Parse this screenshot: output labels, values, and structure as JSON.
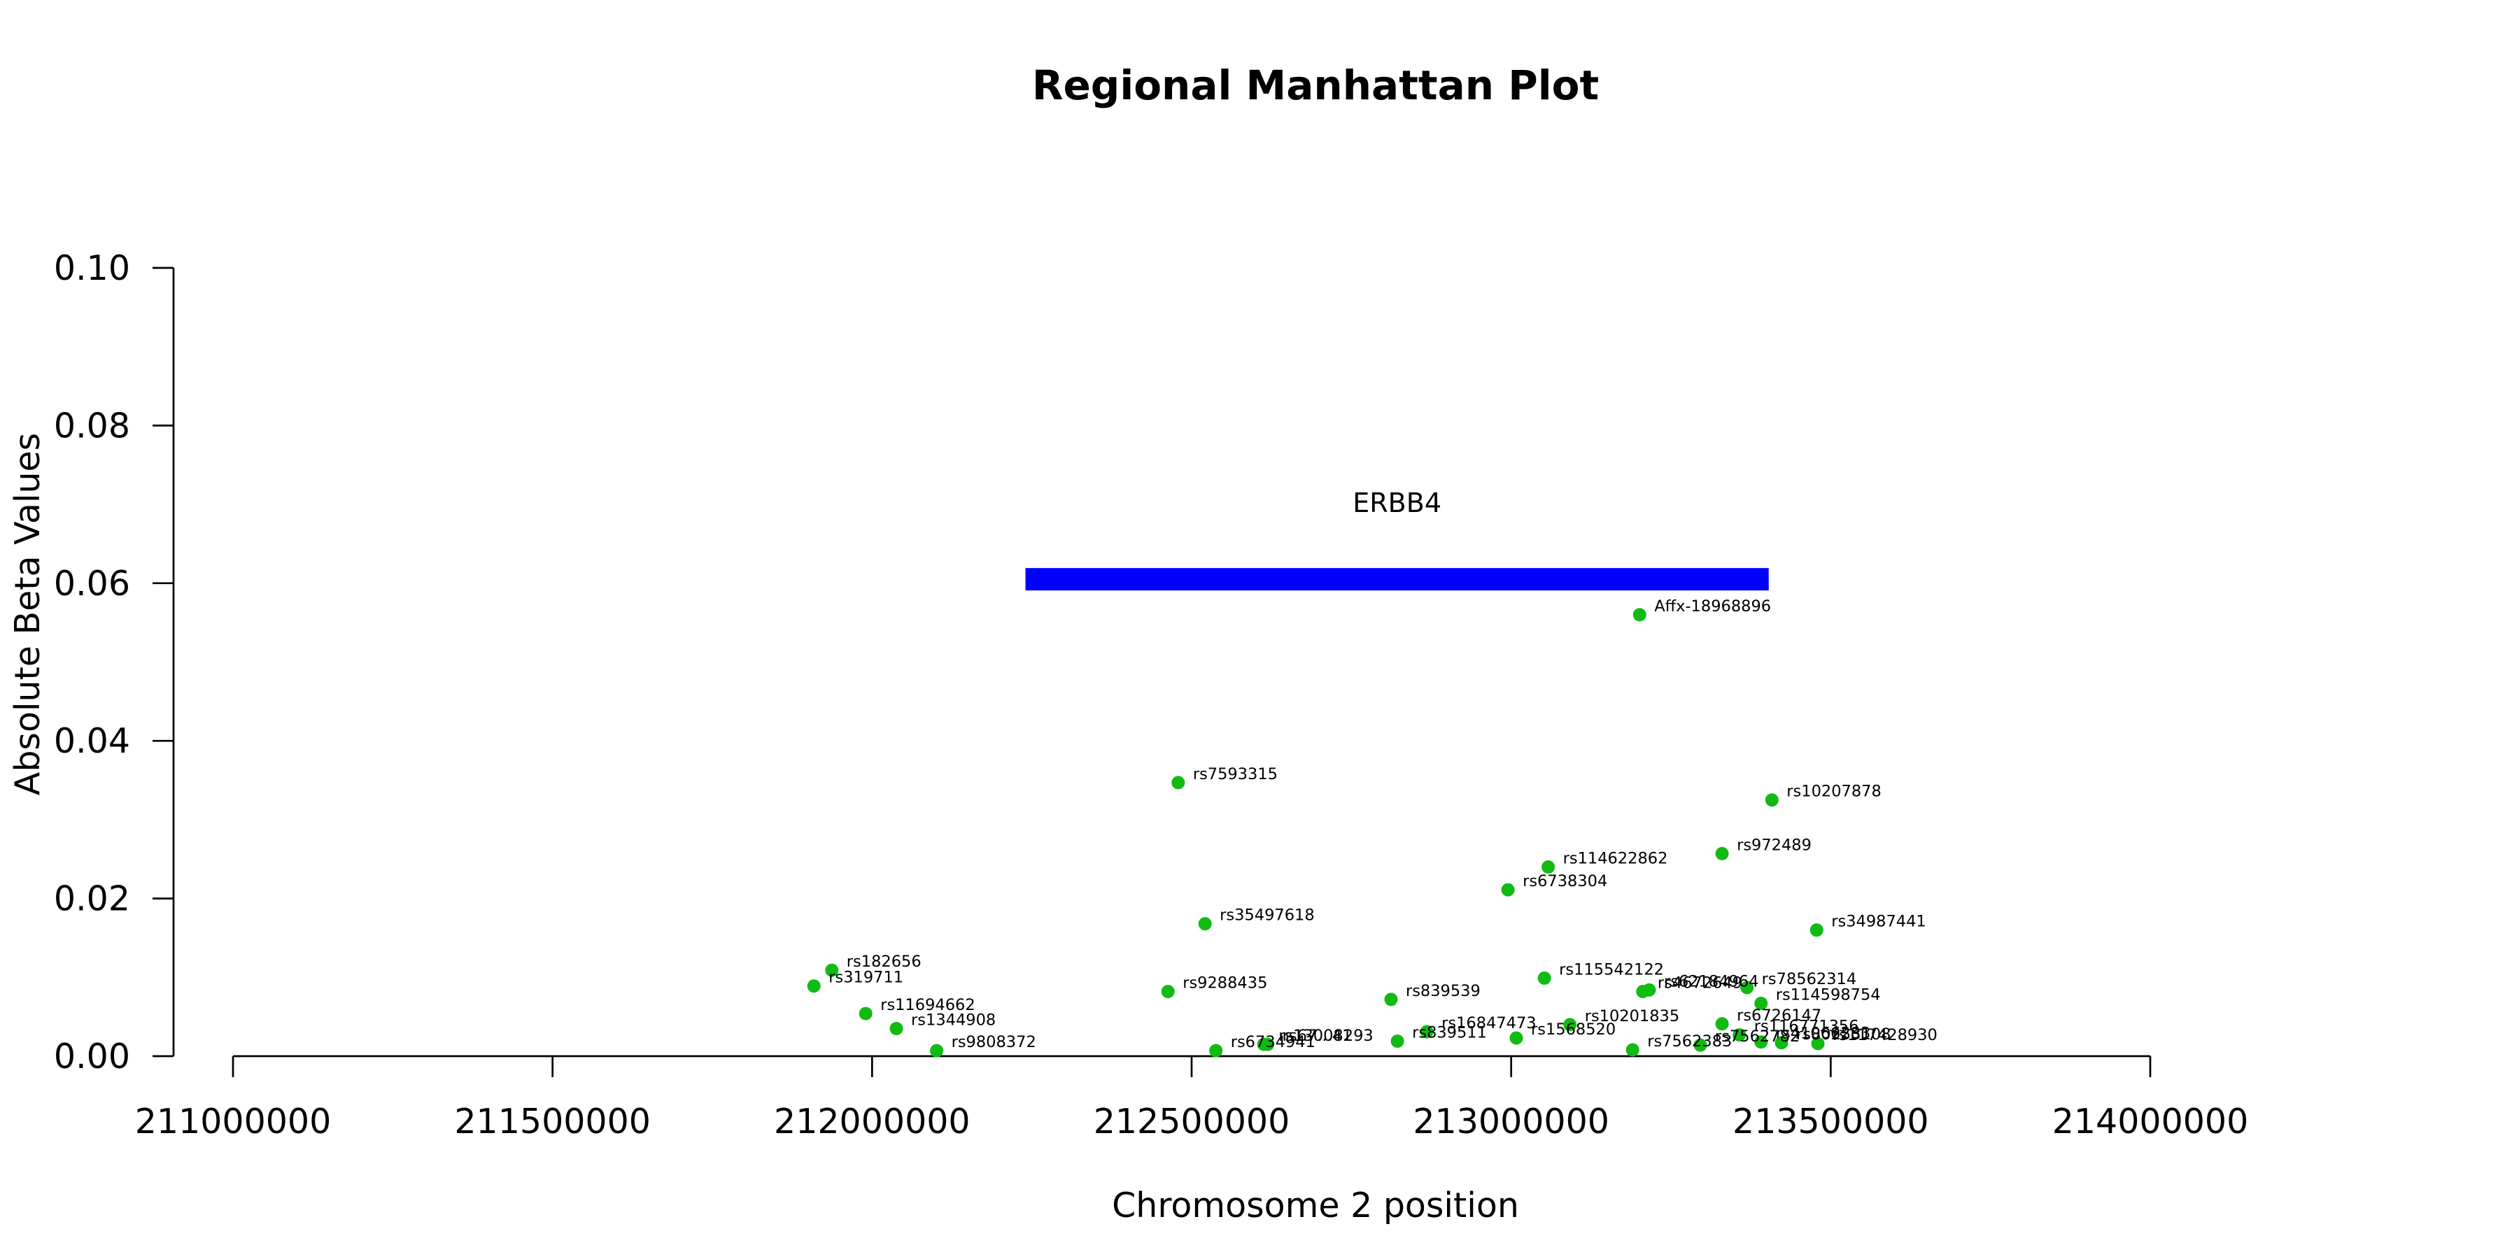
{
  "chart_data": {
    "type": "scatter",
    "title": "Regional Manhattan Plot",
    "xlabel": "Chromosome 2 position",
    "ylabel": "Absolute Beta Values",
    "xlim": [
      211000000,
      214000000
    ],
    "ylim": [
      0,
      0.1
    ],
    "x_ticks": [
      211000000,
      211500000,
      212000000,
      212500000,
      213000000,
      213500000,
      214000000
    ],
    "y_ticks": [
      "0.00",
      "0.02",
      "0.04",
      "0.06",
      "0.08",
      "0.10"
    ],
    "point_color": "#11bb11",
    "gene": {
      "name": "ERBB4",
      "start": 212240000,
      "end": 213403000,
      "y": 0.0605,
      "color": "#0000ff"
    },
    "points": [
      {
        "label": "Affx-18968896",
        "x": 213201000,
        "y": 0.056
      },
      {
        "label": "rs7593315",
        "x": 212479000,
        "y": 0.0347
      },
      {
        "label": "rs10207878",
        "x": 213408000,
        "y": 0.0325
      },
      {
        "label": "rs972489",
        "x": 213330000,
        "y": 0.0257
      },
      {
        "label": "rs114622862",
        "x": 213058000,
        "y": 0.024
      },
      {
        "label": "rs6738304",
        "x": 212995000,
        "y": 0.0211
      },
      {
        "label": "rs35497618",
        "x": 212521000,
        "y": 0.0168
      },
      {
        "label": "rs34987441",
        "x": 213478000,
        "y": 0.016
      },
      {
        "label": "rs182656",
        "x": 211937000,
        "y": 0.0109
      },
      {
        "label": "rs115542122",
        "x": 213052000,
        "y": 0.0099
      },
      {
        "label": "rs319711",
        "x": 211909000,
        "y": 0.0089
      },
      {
        "label": "rs78562314",
        "x": 213369000,
        "y": 0.0087
      },
      {
        "label": "rs62184964",
        "x": 213216000,
        "y": 0.0084
      },
      {
        "label": "rs4672649",
        "x": 213206000,
        "y": 0.0082
      },
      {
        "label": "rs9288435",
        "x": 212463000,
        "y": 0.0082
      },
      {
        "label": "rs839539",
        "x": 212812000,
        "y": 0.0072
      },
      {
        "label": "rs114598754",
        "x": 213391000,
        "y": 0.0067
      },
      {
        "label": "rs11694662",
        "x": 211990000,
        "y": 0.0054
      },
      {
        "label": "rs6726147",
        "x": 213330000,
        "y": 0.0041
      },
      {
        "label": "rs10201835",
        "x": 213092000,
        "y": 0.004
      },
      {
        "label": "rs1344908",
        "x": 212038000,
        "y": 0.0035
      },
      {
        "label": "rs16847473",
        "x": 212868000,
        "y": 0.0031
      },
      {
        "label": "rs116771356",
        "x": 213357000,
        "y": 0.0027
      },
      {
        "label": "rs1568520",
        "x": 213008000,
        "y": 0.0023
      },
      {
        "label": "rs839511",
        "x": 212822000,
        "y": 0.0019
      },
      {
        "label": "rs41066283",
        "x": 213391000,
        "y": 0.0018
      },
      {
        "label": "rs80253108",
        "x": 213423000,
        "y": 0.0017
      },
      {
        "label": "rs117428930",
        "x": 213480000,
        "y": 0.0016
      },
      {
        "label": "rs13008293",
        "x": 212613000,
        "y": 0.0015
      },
      {
        "label": "rs67...41",
        "x": 212619000,
        "y": 0.0015
      },
      {
        "label": "rs7562782",
        "x": 213296000,
        "y": 0.0014
      },
      {
        "label": "rs6734941",
        "x": 212538000,
        "y": 0.0007
      },
      {
        "label": "rs9808372",
        "x": 212101000,
        "y": 0.0007
      },
      {
        "label": "rs7562383",
        "x": 213190000,
        "y": 0.0008
      }
    ]
  }
}
